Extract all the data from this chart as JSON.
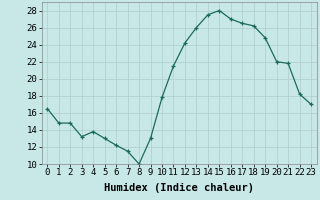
{
  "x": [
    0,
    1,
    2,
    3,
    4,
    5,
    6,
    7,
    8,
    9,
    10,
    11,
    12,
    13,
    14,
    15,
    16,
    17,
    18,
    19,
    20,
    21,
    22,
    23
  ],
  "y": [
    16.5,
    14.8,
    14.8,
    13.2,
    13.8,
    13.0,
    12.2,
    11.5,
    10.0,
    13.0,
    17.8,
    21.5,
    24.2,
    26.0,
    27.5,
    28.0,
    27.0,
    26.5,
    26.2,
    24.8,
    22.0,
    21.8,
    18.2,
    17.0
  ],
  "xlabel": "Humidex (Indice chaleur)",
  "ylim": [
    10,
    29
  ],
  "xlim": [
    -0.5,
    23.5
  ],
  "line_color": "#1a6b5a",
  "marker": "+",
  "bg_color": "#c8e8e8",
  "grid_color": "#b0cccc",
  "yticks": [
    10,
    12,
    14,
    16,
    18,
    20,
    22,
    24,
    26,
    28
  ],
  "xticks": [
    0,
    1,
    2,
    3,
    4,
    5,
    6,
    7,
    8,
    9,
    10,
    11,
    12,
    13,
    14,
    15,
    16,
    17,
    18,
    19,
    20,
    21,
    22,
    23
  ],
  "tick_fontsize": 6.5,
  "xlabel_fontsize": 7.5
}
